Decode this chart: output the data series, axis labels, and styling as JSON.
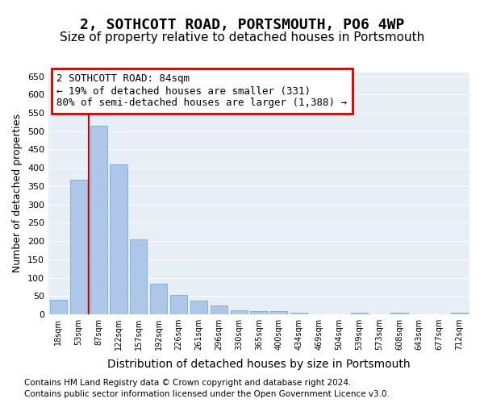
{
  "title": "2, SOTHCOTT ROAD, PORTSMOUTH, PO6 4WP",
  "subtitle": "Size of property relative to detached houses in Portsmouth",
  "xlabel": "Distribution of detached houses by size in Portsmouth",
  "ylabel": "Number of detached properties",
  "bar_labels": [
    "18sqm",
    "53sqm",
    "87sqm",
    "122sqm",
    "157sqm",
    "192sqm",
    "226sqm",
    "261sqm",
    "296sqm",
    "330sqm",
    "365sqm",
    "400sqm",
    "434sqm",
    "469sqm",
    "504sqm",
    "539sqm",
    "573sqm",
    "608sqm",
    "643sqm",
    "677sqm",
    "712sqm"
  ],
  "bar_values": [
    40,
    367,
    515,
    410,
    205,
    83,
    53,
    38,
    25,
    10,
    8,
    8,
    5,
    0,
    0,
    5,
    0,
    5,
    0,
    0,
    5
  ],
  "bar_color": "#aec6e8",
  "bar_edge_color": "#6aa0d4",
  "vline_x": 1.5,
  "vline_color": "#cc0000",
  "annotation_text": "2 SOTHCOTT ROAD: 84sqm\n← 19% of detached houses are smaller (331)\n80% of semi-detached houses are larger (1,388) →",
  "annotation_box_color": "#cc0000",
  "annotation_text_color": "#000000",
  "ylim": [
    0,
    660
  ],
  "yticks": [
    0,
    50,
    100,
    150,
    200,
    250,
    300,
    350,
    400,
    450,
    500,
    550,
    600,
    650
  ],
  "plot_background_color": "#e8eef5",
  "footer_line1": "Contains HM Land Registry data © Crown copyright and database right 2024.",
  "footer_line2": "Contains public sector information licensed under the Open Government Licence v3.0.",
  "title_fontsize": 13,
  "subtitle_fontsize": 11,
  "xlabel_fontsize": 10,
  "ylabel_fontsize": 9,
  "annotation_fontsize": 9,
  "footer_fontsize": 7.5
}
